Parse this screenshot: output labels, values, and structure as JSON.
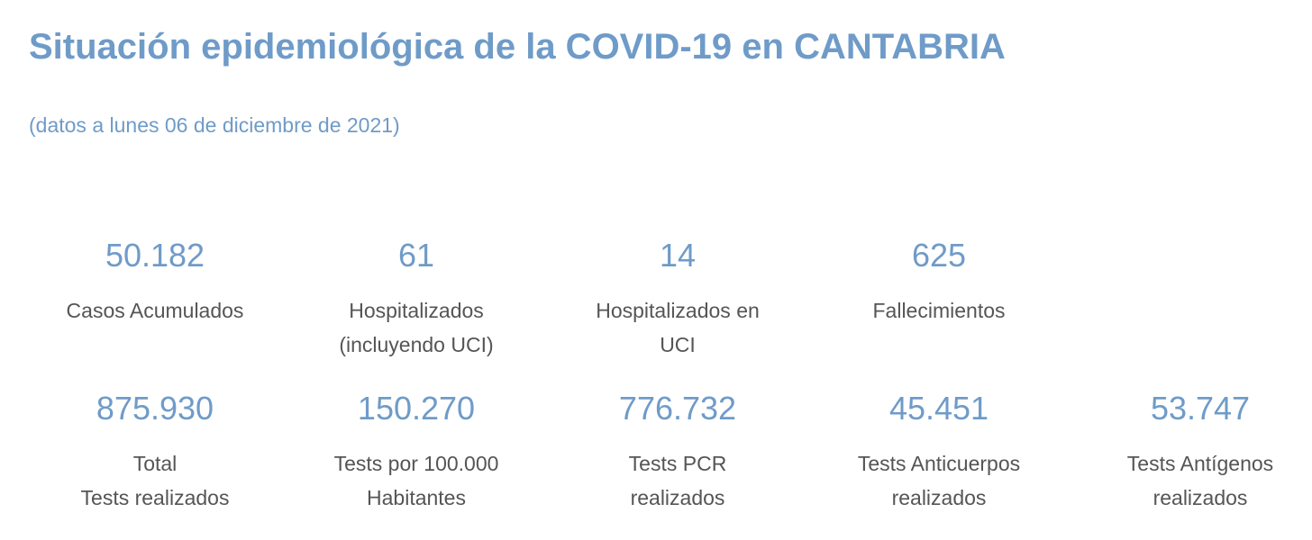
{
  "header": {
    "title": "Situación epidemiológica de la COVID-19 en CANTABRIA",
    "date_note": "(datos a lunes 06 de diciembre de 2021)"
  },
  "row1": [
    {
      "value": "50.182",
      "label_lines": [
        "Casos Acumulados"
      ]
    },
    {
      "value": "61",
      "label_lines": [
        "Hospitalizados",
        "(incluyendo UCI)"
      ]
    },
    {
      "value": "14",
      "label_lines": [
        "Hospitalizados en",
        "UCI"
      ]
    },
    {
      "value": "625",
      "label_lines": [
        "Fallecimientos"
      ]
    }
  ],
  "row2": [
    {
      "value": "875.930",
      "label_lines": [
        "Total",
        "Tests realizados"
      ]
    },
    {
      "value": "150.270",
      "label_lines": [
        "Tests por 100.000",
        "Habitantes"
      ]
    },
    {
      "value": "776.732",
      "label_lines": [
        "Tests PCR",
        "realizados"
      ]
    },
    {
      "value": "45.451",
      "label_lines": [
        "Tests Anticuerpos",
        "realizados"
      ]
    },
    {
      "value": "53.747",
      "label_lines": [
        "Tests Antígenos",
        "realizados"
      ]
    }
  ]
}
